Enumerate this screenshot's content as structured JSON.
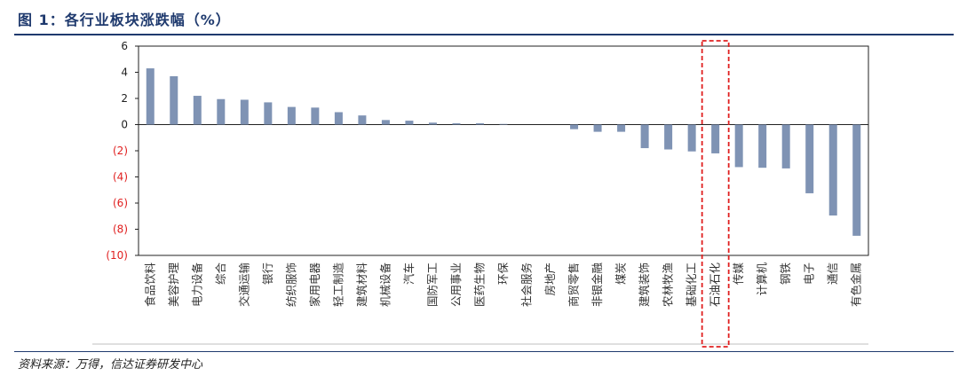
{
  "title": "图 1：各行业板块涨跌幅（%）",
  "source": "资料来源：万得，信达证券研发中心",
  "chart_data": {
    "type": "bar",
    "categories": [
      "食品饮料",
      "美容护理",
      "电力设备",
      "综合",
      "交通运输",
      "银行",
      "纺织服饰",
      "家用电器",
      "轻工制造",
      "建筑材料",
      "机械设备",
      "汽车",
      "国防军工",
      "公用事业",
      "医药生物",
      "环保",
      "社会服务",
      "房地产",
      "商贸零售",
      "非银金融",
      "煤炭",
      "建筑装饰",
      "农林牧渔",
      "基础化工",
      "石油石化",
      "传媒",
      "计算机",
      "钢铁",
      "电子",
      "通信",
      "有色金属"
    ],
    "values": [
      4.3,
      3.7,
      2.2,
      1.95,
      1.9,
      1.7,
      1.35,
      1.3,
      0.95,
      0.7,
      0.35,
      0.3,
      0.15,
      0.1,
      0.1,
      0.05,
      0.0,
      0.0,
      -0.35,
      -0.55,
      -0.55,
      -1.8,
      -1.9,
      -2.05,
      -2.2,
      -3.25,
      -3.3,
      -3.35,
      -5.25,
      -6.95,
      -8.5
    ],
    "ylim": [
      -10,
      6
    ],
    "yticks": [
      6,
      4,
      2,
      0,
      -2,
      -4,
      -6,
      -8,
      -10
    ],
    "ytick_labels": [
      "6",
      "4",
      "2",
      "0",
      "(2)",
      "(4)",
      "(6)",
      "(8)",
      "(10)"
    ],
    "bar_color": "#7f93b4",
    "negative_label_color": "#e02020",
    "highlight_category": "石油石化",
    "highlight_color": "#e02020",
    "grid": false
  }
}
